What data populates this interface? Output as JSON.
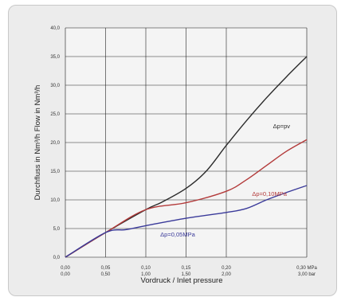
{
  "chart_data": {
    "type": "line",
    "xlabel": "Vordruck / Inlet pressure",
    "ylabel": "Durchfluss in Nm³/h   Flow in Nm³/h",
    "xlim": [
      0,
      0.3
    ],
    "ylim": [
      0,
      40
    ],
    "grid": true,
    "y_ticks": [
      "0,0",
      "5,0",
      "10,0",
      "15,0",
      "20,0",
      "25,0",
      "30,0",
      "35,0",
      "40,0"
    ],
    "x_ticks": [
      {
        "mpa": "0,00",
        "bar": "0,00"
      },
      {
        "mpa": "0,05",
        "bar": "0,50"
      },
      {
        "mpa": "0,10",
        "bar": "1,00"
      },
      {
        "mpa": "0,15",
        "bar": "1,50"
      },
      {
        "mpa": "0,20",
        "bar": "2,00"
      },
      {
        "mpa": "0,30 MPa",
        "bar": "3,00 bar"
      }
    ],
    "series": [
      {
        "name": "Δp=pv",
        "color": "#2a2a2a",
        "x": [
          0,
          0.05,
          0.1,
          0.12,
          0.15,
          0.175,
          0.2,
          0.225,
          0.25,
          0.275,
          0.3
        ],
        "y": [
          0,
          4.3,
          8.3,
          9.6,
          12.0,
          15.0,
          19.5,
          23.8,
          27.8,
          31.5,
          35.0
        ]
      },
      {
        "name": "Δp=0,10MPa",
        "color": "#b33a3a",
        "x": [
          0,
          0.05,
          0.1,
          0.15,
          0.2,
          0.225,
          0.25,
          0.275,
          0.3
        ],
        "y": [
          0,
          4.3,
          8.3,
          9.5,
          11.5,
          13.5,
          16.0,
          18.5,
          20.5
        ]
      },
      {
        "name": "Δp=0,05MPa",
        "color": "#3a3a9a",
        "x": [
          0,
          0.05,
          0.075,
          0.1,
          0.15,
          0.2,
          0.225,
          0.25,
          0.275,
          0.3
        ],
        "y": [
          0,
          4.3,
          4.8,
          5.5,
          6.8,
          7.8,
          8.5,
          10.0,
          11.3,
          12.5
        ]
      }
    ]
  }
}
